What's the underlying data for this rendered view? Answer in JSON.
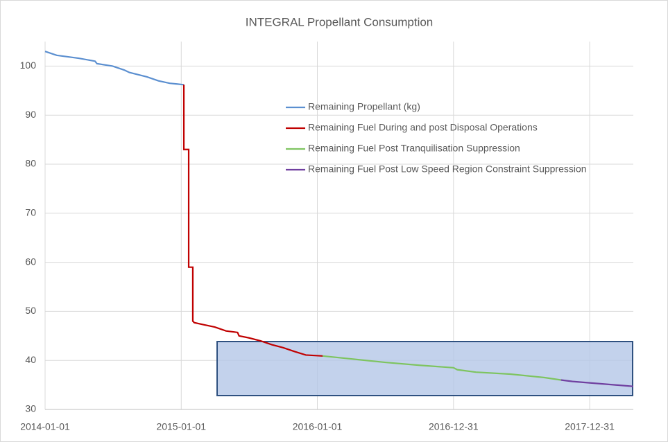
{
  "chart_data": {
    "type": "line",
    "title": "INTEGRAL Propellant Consumption",
    "xlim": [
      "2014-01-01",
      "2018-04-27"
    ],
    "xticks": [
      "2014-01-01",
      "2015-01-01",
      "2016-01-01",
      "2016-12-31",
      "2017-12-31"
    ],
    "ylim": [
      30,
      105
    ],
    "yticks": [
      30,
      40,
      50,
      60,
      70,
      80,
      90,
      100
    ],
    "grid": true,
    "legend": "upper right",
    "series": [
      {
        "name": "Remaining Propellant (kg)",
        "color": "#5b8fd0",
        "x": [
          "2014-01-01",
          "2014-02-01",
          "2014-04-01",
          "2014-05-15",
          "2014-05-20",
          "2014-07-01",
          "2014-08-01",
          "2014-08-15",
          "2014-10-01",
          "2014-11-01",
          "2014-12-01",
          "2015-01-08"
        ],
        "values": [
          103,
          102.2,
          101.6,
          101.0,
          100.5,
          100.0,
          99.2,
          98.7,
          97.8,
          97.0,
          96.5,
          96.2
        ]
      },
      {
        "name": "Remaining Fuel During and post Disposal Operations",
        "color": "#c00000",
        "x": [
          "2015-01-08",
          "2015-01-08",
          "2015-01-21",
          "2015-01-21",
          "2015-02-01",
          "2015-02-01",
          "2015-02-05",
          "2015-03-01",
          "2015-04-01",
          "2015-05-01",
          "2015-06-01",
          "2015-06-05",
          "2015-07-01",
          "2015-08-01",
          "2015-09-01",
          "2015-10-01",
          "2015-11-01",
          "2015-12-01",
          "2016-01-15"
        ],
        "values": [
          96.2,
          83,
          83,
          59,
          59,
          48,
          47.7,
          47.3,
          46.8,
          46.0,
          45.7,
          45.0,
          44.6,
          44.0,
          43.2,
          42.6,
          41.8,
          41.1,
          40.9
        ]
      },
      {
        "name": "Remaining Fuel Post Tranquilisation Suppression",
        "color": "#7ec460",
        "x": [
          "2016-01-15",
          "2016-04-01",
          "2016-07-01",
          "2016-10-01",
          "2016-12-31",
          "2017-01-10",
          "2017-03-01",
          "2017-06-01",
          "2017-09-01",
          "2017-10-15"
        ],
        "values": [
          40.9,
          40.3,
          39.6,
          39.0,
          38.5,
          38.1,
          37.6,
          37.2,
          36.5,
          36.0
        ]
      },
      {
        "name": "Remaining Fuel Post Low Speed Region Constraint Suppression",
        "color": "#7040a0",
        "x": [
          "2017-10-15",
          "2017-11-15",
          "2018-04-27"
        ],
        "values": [
          36.0,
          35.7,
          34.7
        ]
      }
    ]
  }
}
